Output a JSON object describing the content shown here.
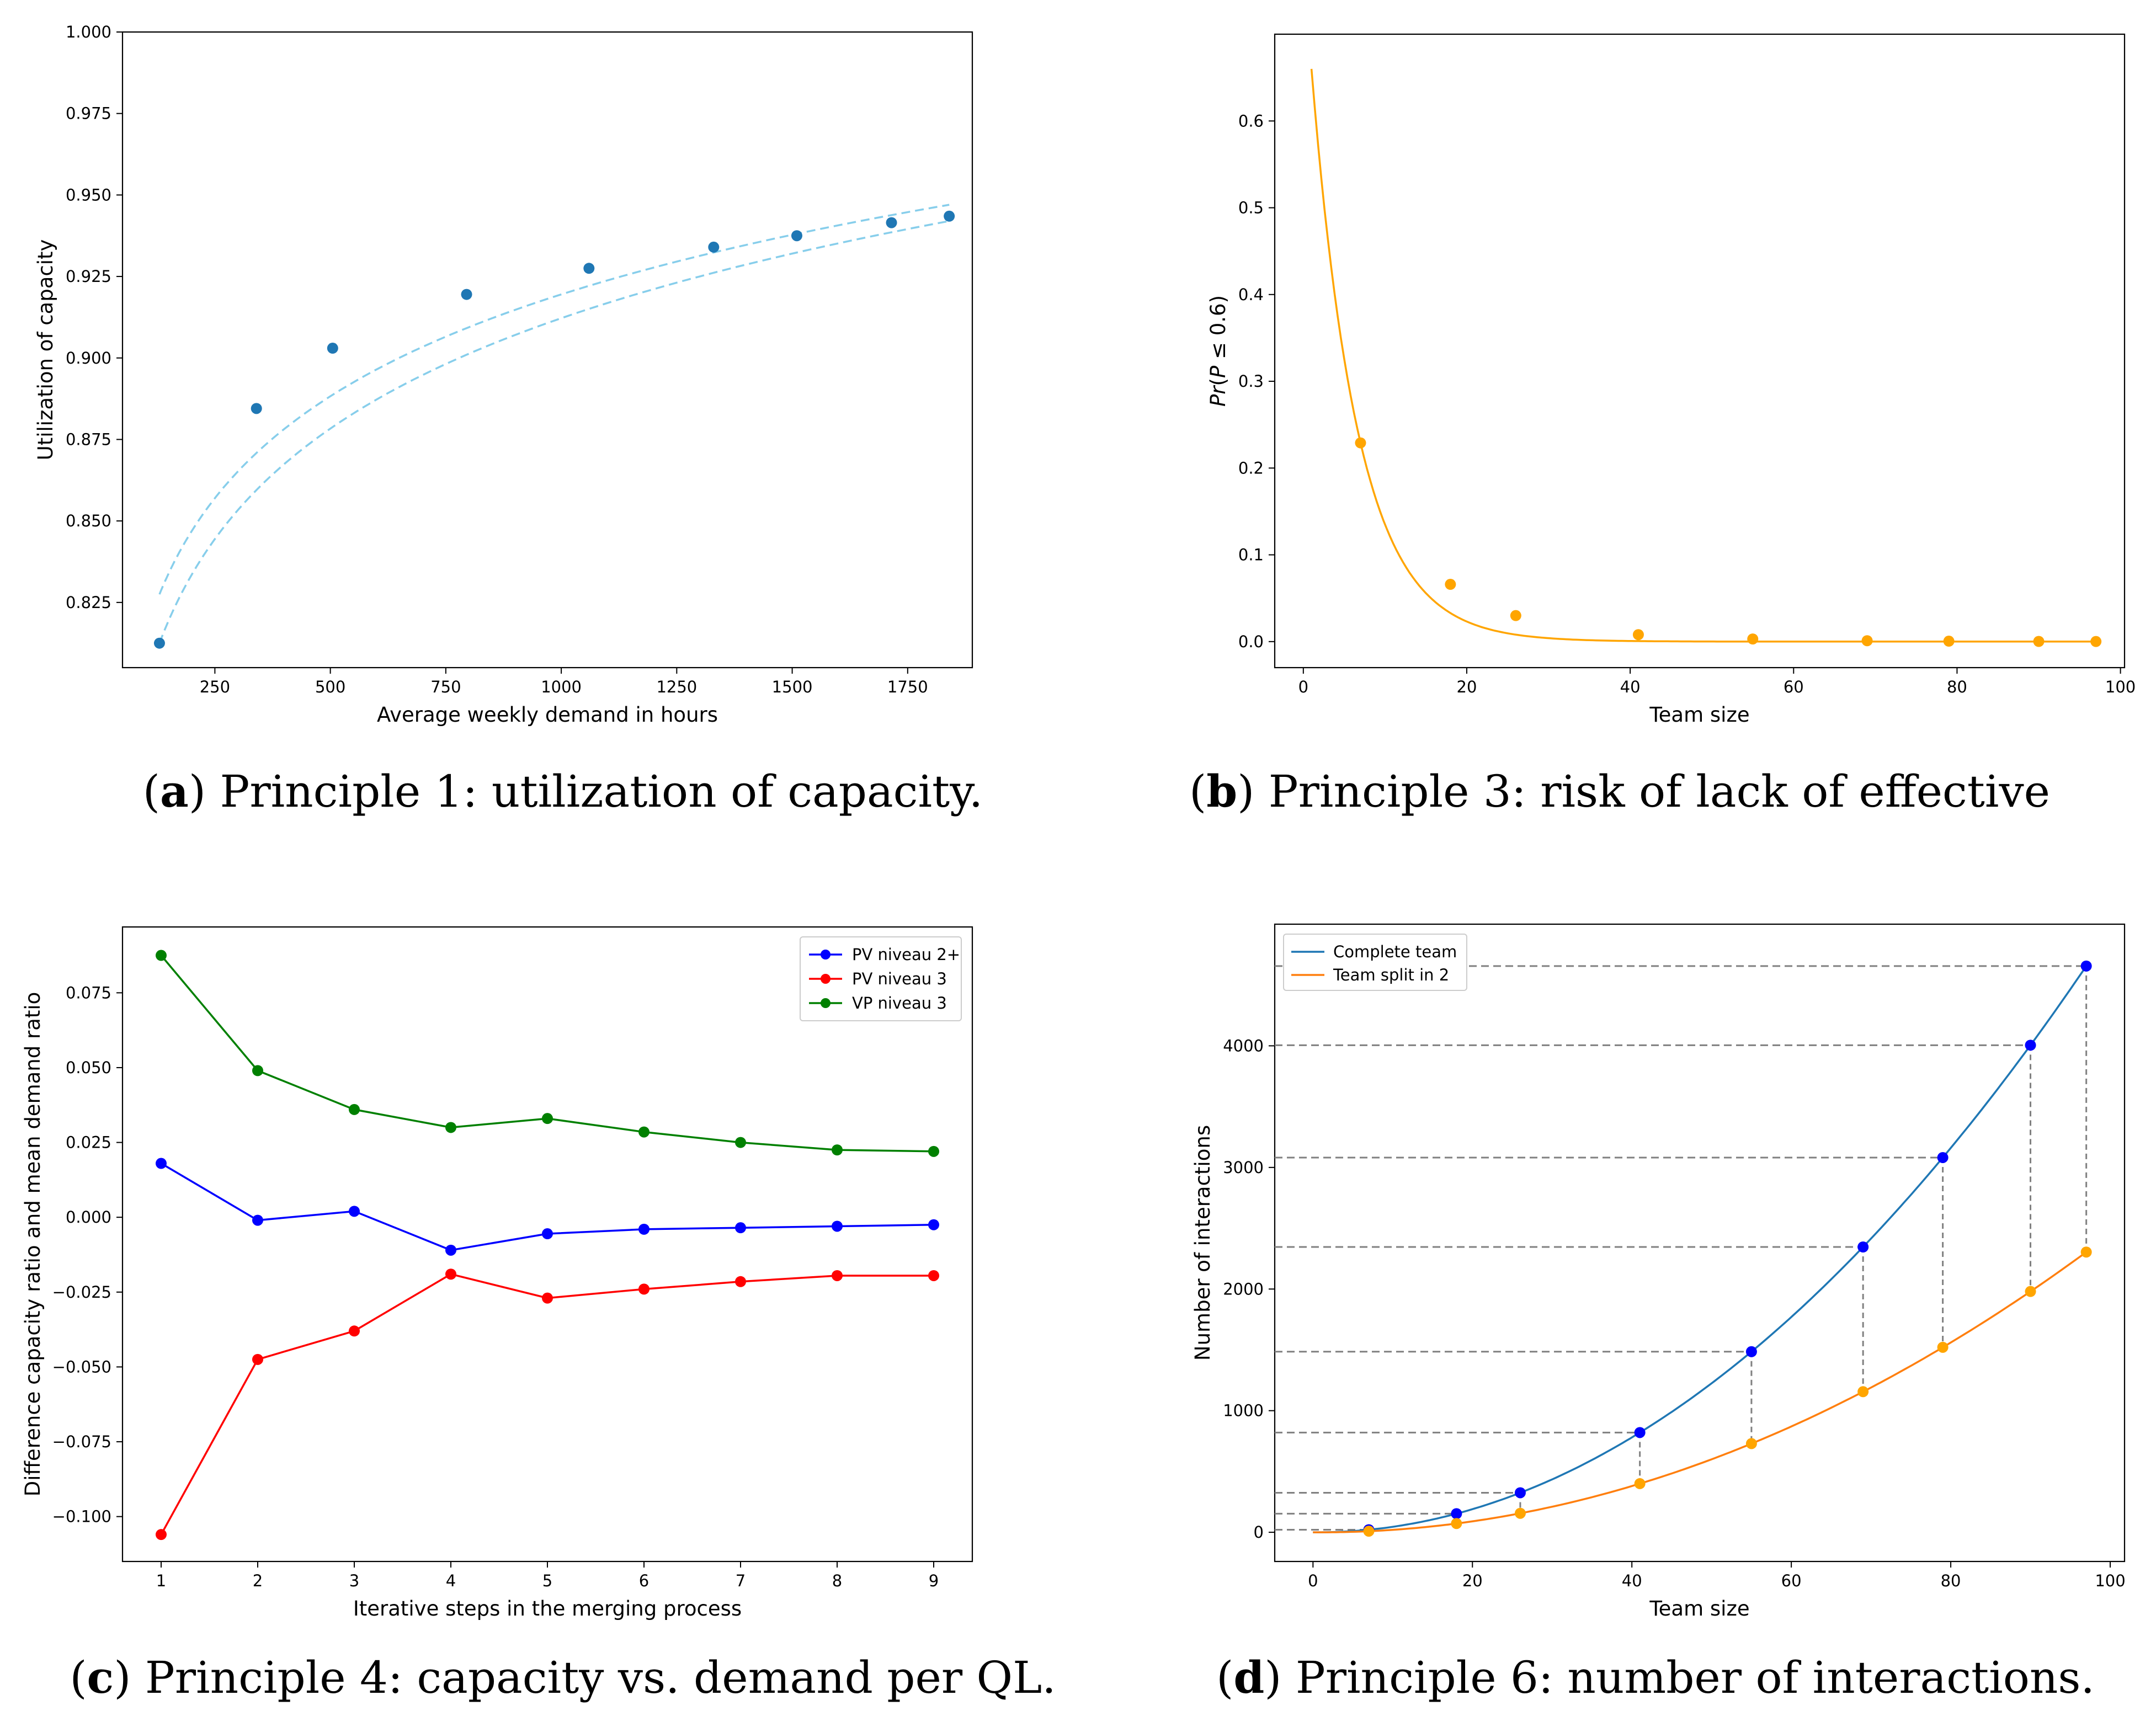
{
  "figure": {
    "captions": [
      {
        "letter": "a",
        "text": "Principle 1: utilization of capacity."
      },
      {
        "letter": "b",
        "text": "Principle 3: risk of lack of effective"
      },
      {
        "letter": "c",
        "text": "Principle 4: capacity vs. demand per QL."
      },
      {
        "letter": "d",
        "text": "Principle 6: number of interactions."
      }
    ],
    "colors": {
      "a_points": "#1f77b4",
      "a_fit": "#87ceeb",
      "b_line": "#ffa500",
      "c_blue": "#0000ff",
      "c_red": "#ff0000",
      "c_green": "#008000",
      "d_complete_line": "#1f77b4",
      "d_complete_points": "#0000ff",
      "d_split": "#ff7f0e",
      "d_split_points": "#ffa500",
      "guide": "#808080"
    }
  },
  "chart_data": [
    {
      "id": "a",
      "type": "scatter",
      "title": "",
      "xlabel": "Average weekly demand in hours",
      "ylabel": "Utilization of capacity",
      "xlim": [
        50,
        1890
      ],
      "ylim": [
        0.805,
        1.0
      ],
      "xticks": [
        250,
        500,
        750,
        1000,
        1250,
        1500,
        1750
      ],
      "yticks": [
        0.825,
        0.85,
        0.875,
        0.9,
        0.925,
        0.95,
        0.975,
        1.0
      ],
      "ytick_labels": [
        "0.825",
        "0.850",
        "0.875",
        "0.900",
        "0.925",
        "0.950",
        "0.975",
        "1.000"
      ],
      "points": {
        "x": [
          130,
          340,
          505,
          795,
          1060,
          1330,
          1510,
          1715,
          1840
        ],
        "y": [
          0.8125,
          0.8845,
          0.903,
          0.9195,
          0.9275,
          0.934,
          0.9375,
          0.9415,
          0.9435
        ]
      },
      "fit_curves": [
        {
          "name": "upper",
          "style": "dashed",
          "x": [
            130,
            1840
          ],
          "y": [
            0.8275,
            0.947
          ]
        },
        {
          "name": "lower",
          "style": "dashed",
          "x": [
            130,
            1840
          ],
          "y": [
            0.8125,
            0.942
          ]
        }
      ]
    },
    {
      "id": "b",
      "type": "line",
      "title": "",
      "xlabel": "Team size",
      "ylabel": "Pr(P ≤ 0.6)",
      "xlim": [
        -3.5,
        100.5
      ],
      "ylim": [
        -0.03,
        0.7
      ],
      "xticks": [
        0,
        20,
        40,
        60,
        80,
        100
      ],
      "yticks": [
        0.0,
        0.1,
        0.2,
        0.3,
        0.4,
        0.5,
        0.6
      ],
      "ytick_labels": [
        "0.0",
        "0.1",
        "0.2",
        "0.3",
        "0.4",
        "0.5",
        "0.6"
      ],
      "curve": {
        "x_start": 1,
        "x_end": 97,
        "y_start": 0.66
      },
      "points": {
        "x": [
          7,
          18,
          26,
          41,
          55,
          69,
          79,
          90,
          97
        ],
        "y": [
          0.229,
          0.066,
          0.03,
          0.008,
          0.003,
          0.001,
          0.0005,
          0.0002,
          0.0001
        ]
      }
    },
    {
      "id": "c",
      "type": "line",
      "title": "",
      "xlabel": "Iterative steps in the merging process",
      "ylabel": "Difference capacity ratio and mean demand ratio",
      "xlim": [
        0.6,
        9.4
      ],
      "ylim": [
        -0.115,
        0.097
      ],
      "x": [
        1,
        2,
        3,
        4,
        5,
        6,
        7,
        8,
        9
      ],
      "xticks": [
        1,
        2,
        3,
        4,
        5,
        6,
        7,
        8,
        9
      ],
      "yticks": [
        -0.1,
        -0.075,
        -0.05,
        -0.025,
        0.0,
        0.025,
        0.05,
        0.075
      ],
      "ytick_labels": [
        "−0.100",
        "−0.075",
        "−0.050",
        "−0.025",
        "0.000",
        "0.025",
        "0.050",
        "0.075"
      ],
      "legend_position": "top-right",
      "series": [
        {
          "name": "PV niveau 2+",
          "color": "#0000ff",
          "values": [
            0.018,
            -0.001,
            0.002,
            -0.011,
            -0.0055,
            -0.004,
            -0.0035,
            -0.003,
            -0.0025
          ]
        },
        {
          "name": "PV niveau 3",
          "color": "#ff0000",
          "values": [
            -0.106,
            -0.0475,
            -0.038,
            -0.019,
            -0.027,
            -0.024,
            -0.0215,
            -0.0195,
            -0.0195
          ]
        },
        {
          "name": "VP niveau 3",
          "color": "#008000",
          "values": [
            0.0875,
            0.049,
            0.036,
            0.03,
            0.033,
            0.0285,
            0.025,
            0.0225,
            0.022
          ]
        }
      ]
    },
    {
      "id": "d",
      "type": "line",
      "title": "",
      "xlabel": "Team size",
      "ylabel": "Number of interactions",
      "xlim": [
        -4.8,
        101.8
      ],
      "ylim": [
        -240,
        5000
      ],
      "xticks": [
        0,
        20,
        40,
        60,
        80,
        100
      ],
      "yticks": [
        0,
        1000,
        2000,
        3000,
        4000
      ],
      "ytick_labels": [
        "0",
        "1000",
        "2000",
        "3000",
        "4000"
      ],
      "legend_position": "top-left",
      "series": [
        {
          "name": "Complete team",
          "color": "#1f77b4",
          "formula": "n(n-1)/2",
          "points_x": [
            7,
            18,
            26,
            41,
            55,
            69,
            79,
            90,
            97
          ],
          "points_y": [
            21,
            153,
            325,
            820,
            1485,
            2346,
            3081,
            4005,
            4656
          ]
        },
        {
          "name": "Team split in 2",
          "color": "#ff7f0e",
          "formula": "n(n-2)/4",
          "points_x": [
            7,
            18,
            26,
            41,
            55,
            69,
            79,
            90,
            97
          ],
          "points_y": [
            9,
            72,
            156,
            400,
            729,
            1156,
            1521,
            1980,
            2304
          ]
        }
      ]
    }
  ]
}
